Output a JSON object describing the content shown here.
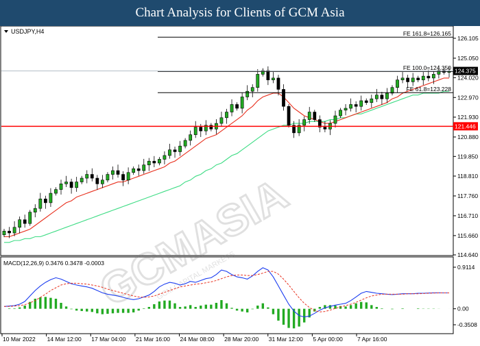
{
  "banner": {
    "title": "Chart Analysis for Clients of GCM Asia"
  },
  "watermark": {
    "brand": "GCMASIA",
    "tagline": "GCM CAPITAL MARKETS"
  },
  "chart_data": {
    "type": "candlestick",
    "symbol_label": "USDJPY,H4",
    "ylim": [
      114.64,
      126.68
    ],
    "yticks": [
      "126.105",
      "125.050",
      "124.020",
      "122.970",
      "121.930",
      "120.880",
      "119.850",
      "118.810",
      "117.760",
      "116.710",
      "115.660",
      "114.640"
    ],
    "xticks": [
      "10 Mar 2022",
      "14 Mar 12:00",
      "17 Mar 04:00",
      "21 Mar 16:00",
      "24 Mar 08:00",
      "28 Mar 20:00",
      "31 Mar 12:00",
      "5 Apr 00:00",
      "7 Apr 16:00"
    ],
    "price_close": [
      115.9,
      115.8,
      116.1,
      116.5,
      116.3,
      116.9,
      117.1,
      117.6,
      117.4,
      117.9,
      118.1,
      118.4,
      118.5,
      118.2,
      118.5,
      118.7,
      118.9,
      118.7,
      118.4,
      118.6,
      118.9,
      119.1,
      118.9,
      118.6,
      119.0,
      119.2,
      119.1,
      119.4,
      119.6,
      119.5,
      119.7,
      119.9,
      120.2,
      120.1,
      120.4,
      120.7,
      121.0,
      121.4,
      121.2,
      121.5,
      121.3,
      121.6,
      121.9,
      122.2,
      122.6,
      122.4,
      123.0,
      123.3,
      123.5,
      124.2,
      124.4,
      123.9,
      124.0,
      123.4,
      122.5,
      121.5,
      121.1,
      121.5,
      121.8,
      122.2,
      121.8,
      121.4,
      121.3,
      121.6,
      122.0,
      122.3,
      122.4,
      122.6,
      122.5,
      122.8,
      122.7,
      122.9,
      123.1,
      122.9,
      123.2,
      123.5,
      123.9,
      124.0,
      123.8,
      124.0,
      123.9,
      124.1,
      124.0,
      124.2,
      124.4,
      124.3,
      124.375
    ],
    "ma_red": [
      115.6,
      115.6,
      115.7,
      115.8,
      115.9,
      116.0,
      116.2,
      116.4,
      116.6,
      116.8,
      117.0,
      117.2,
      117.4,
      117.5,
      117.7,
      117.8,
      117.9,
      118.0,
      118.1,
      118.2,
      118.3,
      118.4,
      118.5,
      118.5,
      118.6,
      118.7,
      118.8,
      118.9,
      119.0,
      119.1,
      119.2,
      119.3,
      119.5,
      119.6,
      119.8,
      120.0,
      120.2,
      120.4,
      120.6,
      120.8,
      120.9,
      121.0,
      121.2,
      121.4,
      121.6,
      121.8,
      122.0,
      122.3,
      122.5,
      122.8,
      123.0,
      123.1,
      123.2,
      123.2,
      123.0,
      122.7,
      122.4,
      122.2,
      122.0,
      121.9,
      121.8,
      121.7,
      121.6,
      121.6,
      121.7,
      121.8,
      121.9,
      122.0,
      122.1,
      122.2,
      122.3,
      122.4,
      122.5,
      122.6,
      122.7,
      122.9,
      123.0,
      123.2,
      123.3,
      123.4,
      123.5,
      123.6,
      123.7,
      123.8,
      123.9,
      124.0,
      124.0
    ],
    "ma_green": [
      115.3,
      115.3,
      115.4,
      115.4,
      115.5,
      115.5,
      115.6,
      115.6,
      115.7,
      115.8,
      115.9,
      116.0,
      116.1,
      116.2,
      116.3,
      116.4,
      116.5,
      116.6,
      116.7,
      116.8,
      116.9,
      117.0,
      117.1,
      117.2,
      117.3,
      117.4,
      117.5,
      117.6,
      117.7,
      117.8,
      117.9,
      118.0,
      118.1,
      118.2,
      118.3,
      118.5,
      118.6,
      118.8,
      118.9,
      119.1,
      119.2,
      119.4,
      119.5,
      119.7,
      119.9,
      120.0,
      120.2,
      120.4,
      120.6,
      120.8,
      121.0,
      121.2,
      121.3,
      121.4,
      121.5,
      121.5,
      121.6,
      121.6,
      121.6,
      121.7,
      121.7,
      121.7,
      121.7,
      121.8,
      121.8,
      121.9,
      121.9,
      122.0,
      122.1,
      122.1,
      122.2,
      122.3,
      122.4,
      122.5,
      122.6,
      122.7,
      122.8,
      122.9,
      123.0,
      123.1,
      123.1,
      123.2,
      123.2,
      123.2,
      123.2,
      123.3,
      123.3
    ],
    "levels": [
      {
        "label": "FE 161.8=126.165",
        "value": 126.165
      },
      {
        "label": "FE 100.0=124.350",
        "value": 124.35
      },
      {
        "label": "FE 61.8=123.228",
        "value": 123.228
      }
    ],
    "horizontal_line": {
      "value": 121.446,
      "label": "121.446",
      "color": "#ff0000"
    },
    "current_price": {
      "value": 124.375,
      "label": "124.375"
    },
    "macd": {
      "label": "MACD(12,26,9) 0.3476 0.3478 -0.0003",
      "ylim": [
        -0.3508,
        0.9114
      ],
      "ytick_labels": [
        "0.9114",
        "0.00",
        "-0.3508"
      ],
      "macd_line": [
        0.05,
        0.06,
        0.07,
        0.1,
        0.16,
        0.28,
        0.4,
        0.5,
        0.58,
        0.64,
        0.68,
        0.65,
        0.6,
        0.55,
        0.52,
        0.5,
        0.48,
        0.45,
        0.4,
        0.35,
        0.32,
        0.3,
        0.28,
        0.25,
        0.22,
        0.2,
        0.22,
        0.26,
        0.3,
        0.38,
        0.48,
        0.54,
        0.58,
        0.56,
        0.52,
        0.55,
        0.6,
        0.58,
        0.62,
        0.66,
        0.68,
        0.75,
        0.85,
        0.82,
        0.75,
        0.7,
        0.68,
        0.65,
        0.72,
        0.82,
        0.9,
        0.85,
        0.7,
        0.5,
        0.3,
        0.1,
        -0.05,
        -0.15,
        -0.18,
        -0.16,
        -0.1,
        -0.03,
        0.02,
        0.05,
        0.08,
        0.1,
        0.12,
        0.18,
        0.26,
        0.34,
        0.38,
        0.36,
        0.34,
        0.33,
        0.32,
        0.31,
        0.32,
        0.33,
        0.33,
        0.33,
        0.34,
        0.34,
        0.345,
        0.35,
        0.35,
        0.348,
        0.3476
      ],
      "signal_line": [
        0.05,
        0.05,
        0.06,
        0.07,
        0.09,
        0.13,
        0.18,
        0.25,
        0.32,
        0.4,
        0.46,
        0.52,
        0.55,
        0.56,
        0.56,
        0.55,
        0.54,
        0.52,
        0.5,
        0.47,
        0.43,
        0.4,
        0.37,
        0.34,
        0.31,
        0.28,
        0.26,
        0.25,
        0.26,
        0.28,
        0.32,
        0.36,
        0.4,
        0.44,
        0.48,
        0.5,
        0.52,
        0.54,
        0.55,
        0.57,
        0.59,
        0.62,
        0.66,
        0.7,
        0.73,
        0.74,
        0.74,
        0.73,
        0.73,
        0.75,
        0.78,
        0.82,
        0.82,
        0.76,
        0.65,
        0.52,
        0.38,
        0.24,
        0.12,
        0.03,
        -0.04,
        -0.07,
        -0.06,
        -0.03,
        0.01,
        0.04,
        0.07,
        0.1,
        0.14,
        0.19,
        0.24,
        0.28,
        0.3,
        0.32,
        0.32,
        0.32,
        0.32,
        0.32,
        0.33,
        0.33,
        0.33,
        0.335,
        0.34,
        0.345,
        0.348,
        0.348,
        0.3478
      ],
      "histogram": [
        0.0,
        0.01,
        0.01,
        0.03,
        0.07,
        0.15,
        0.22,
        0.25,
        0.26,
        0.24,
        0.22,
        0.13,
        0.05,
        -0.01,
        -0.04,
        -0.05,
        -0.06,
        -0.07,
        -0.1,
        -0.12,
        -0.11,
        -0.1,
        -0.09,
        -0.09,
        -0.09,
        -0.08,
        -0.04,
        0.01,
        0.04,
        0.1,
        0.16,
        0.18,
        0.18,
        0.12,
        0.04,
        0.05,
        0.08,
        0.04,
        0.07,
        0.09,
        0.09,
        0.13,
        0.19,
        0.12,
        0.02,
        -0.04,
        -0.06,
        -0.08,
        -0.01,
        0.07,
        0.12,
        0.03,
        -0.12,
        -0.26,
        -0.35,
        -0.42,
        -0.43,
        -0.39,
        -0.3,
        -0.19,
        -0.06,
        0.04,
        0.08,
        0.08,
        0.07,
        0.06,
        0.05,
        0.08,
        0.12,
        0.15,
        0.14,
        0.08,
        0.04,
        0.01,
        0.0,
        -0.01,
        0.0,
        0.01,
        0.0,
        0.0,
        0.01,
        0.005,
        0.005,
        0.005,
        0.002,
        0.0,
        -0.0003
      ]
    }
  }
}
